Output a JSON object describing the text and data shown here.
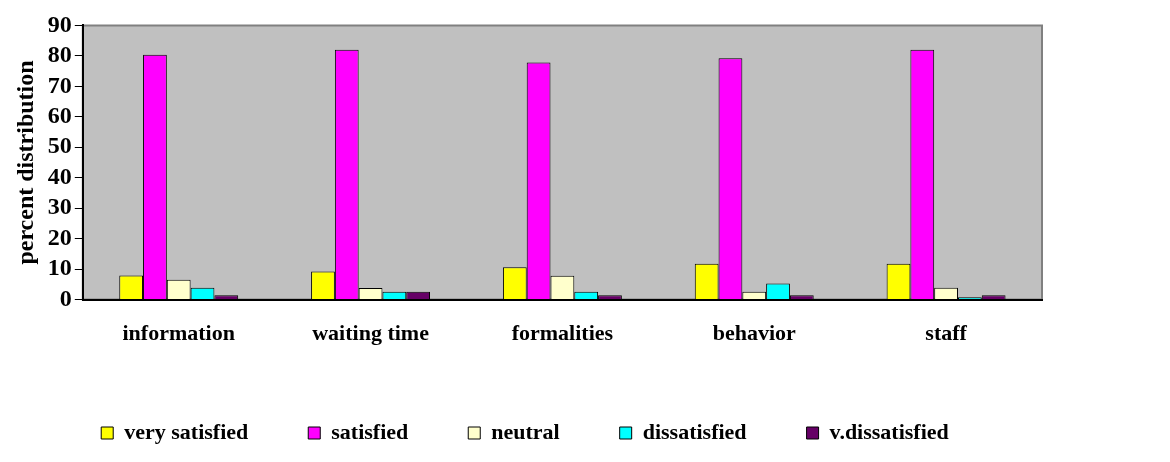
{
  "chart_data": {
    "type": "bar",
    "ylabel": "percent distribution",
    "categories": [
      "information",
      "waiting time",
      "formalities",
      "behavior",
      "staff"
    ],
    "series": [
      {
        "name": "very satisfied",
        "color": "#ffff00",
        "values": [
          7.9,
          9.2,
          10.6,
          11.8,
          11.8
        ]
      },
      {
        "name": "satisfied",
        "color": "#ff00ff",
        "values": [
          80.4,
          82,
          77.8,
          79.2,
          82
        ]
      },
      {
        "name": "neutral",
        "color": "#ffffcc",
        "values": [
          6.5,
          3.8,
          7.8,
          2.6,
          3.9
        ]
      },
      {
        "name": "dissatisfied",
        "color": "#00ffff",
        "values": [
          3.9,
          2.6,
          2.6,
          5.3,
          0.8
        ]
      },
      {
        "name": "v.dissatisfied",
        "color": "#660066",
        "values": [
          1.4,
          2.6,
          1.4,
          1.4,
          1.4
        ]
      }
    ],
    "ylim": [
      0,
      90
    ],
    "yticks": [
      0,
      10,
      20,
      30,
      40,
      50,
      60,
      70,
      80,
      90
    ],
    "grid": false,
    "legend": "bottom"
  }
}
